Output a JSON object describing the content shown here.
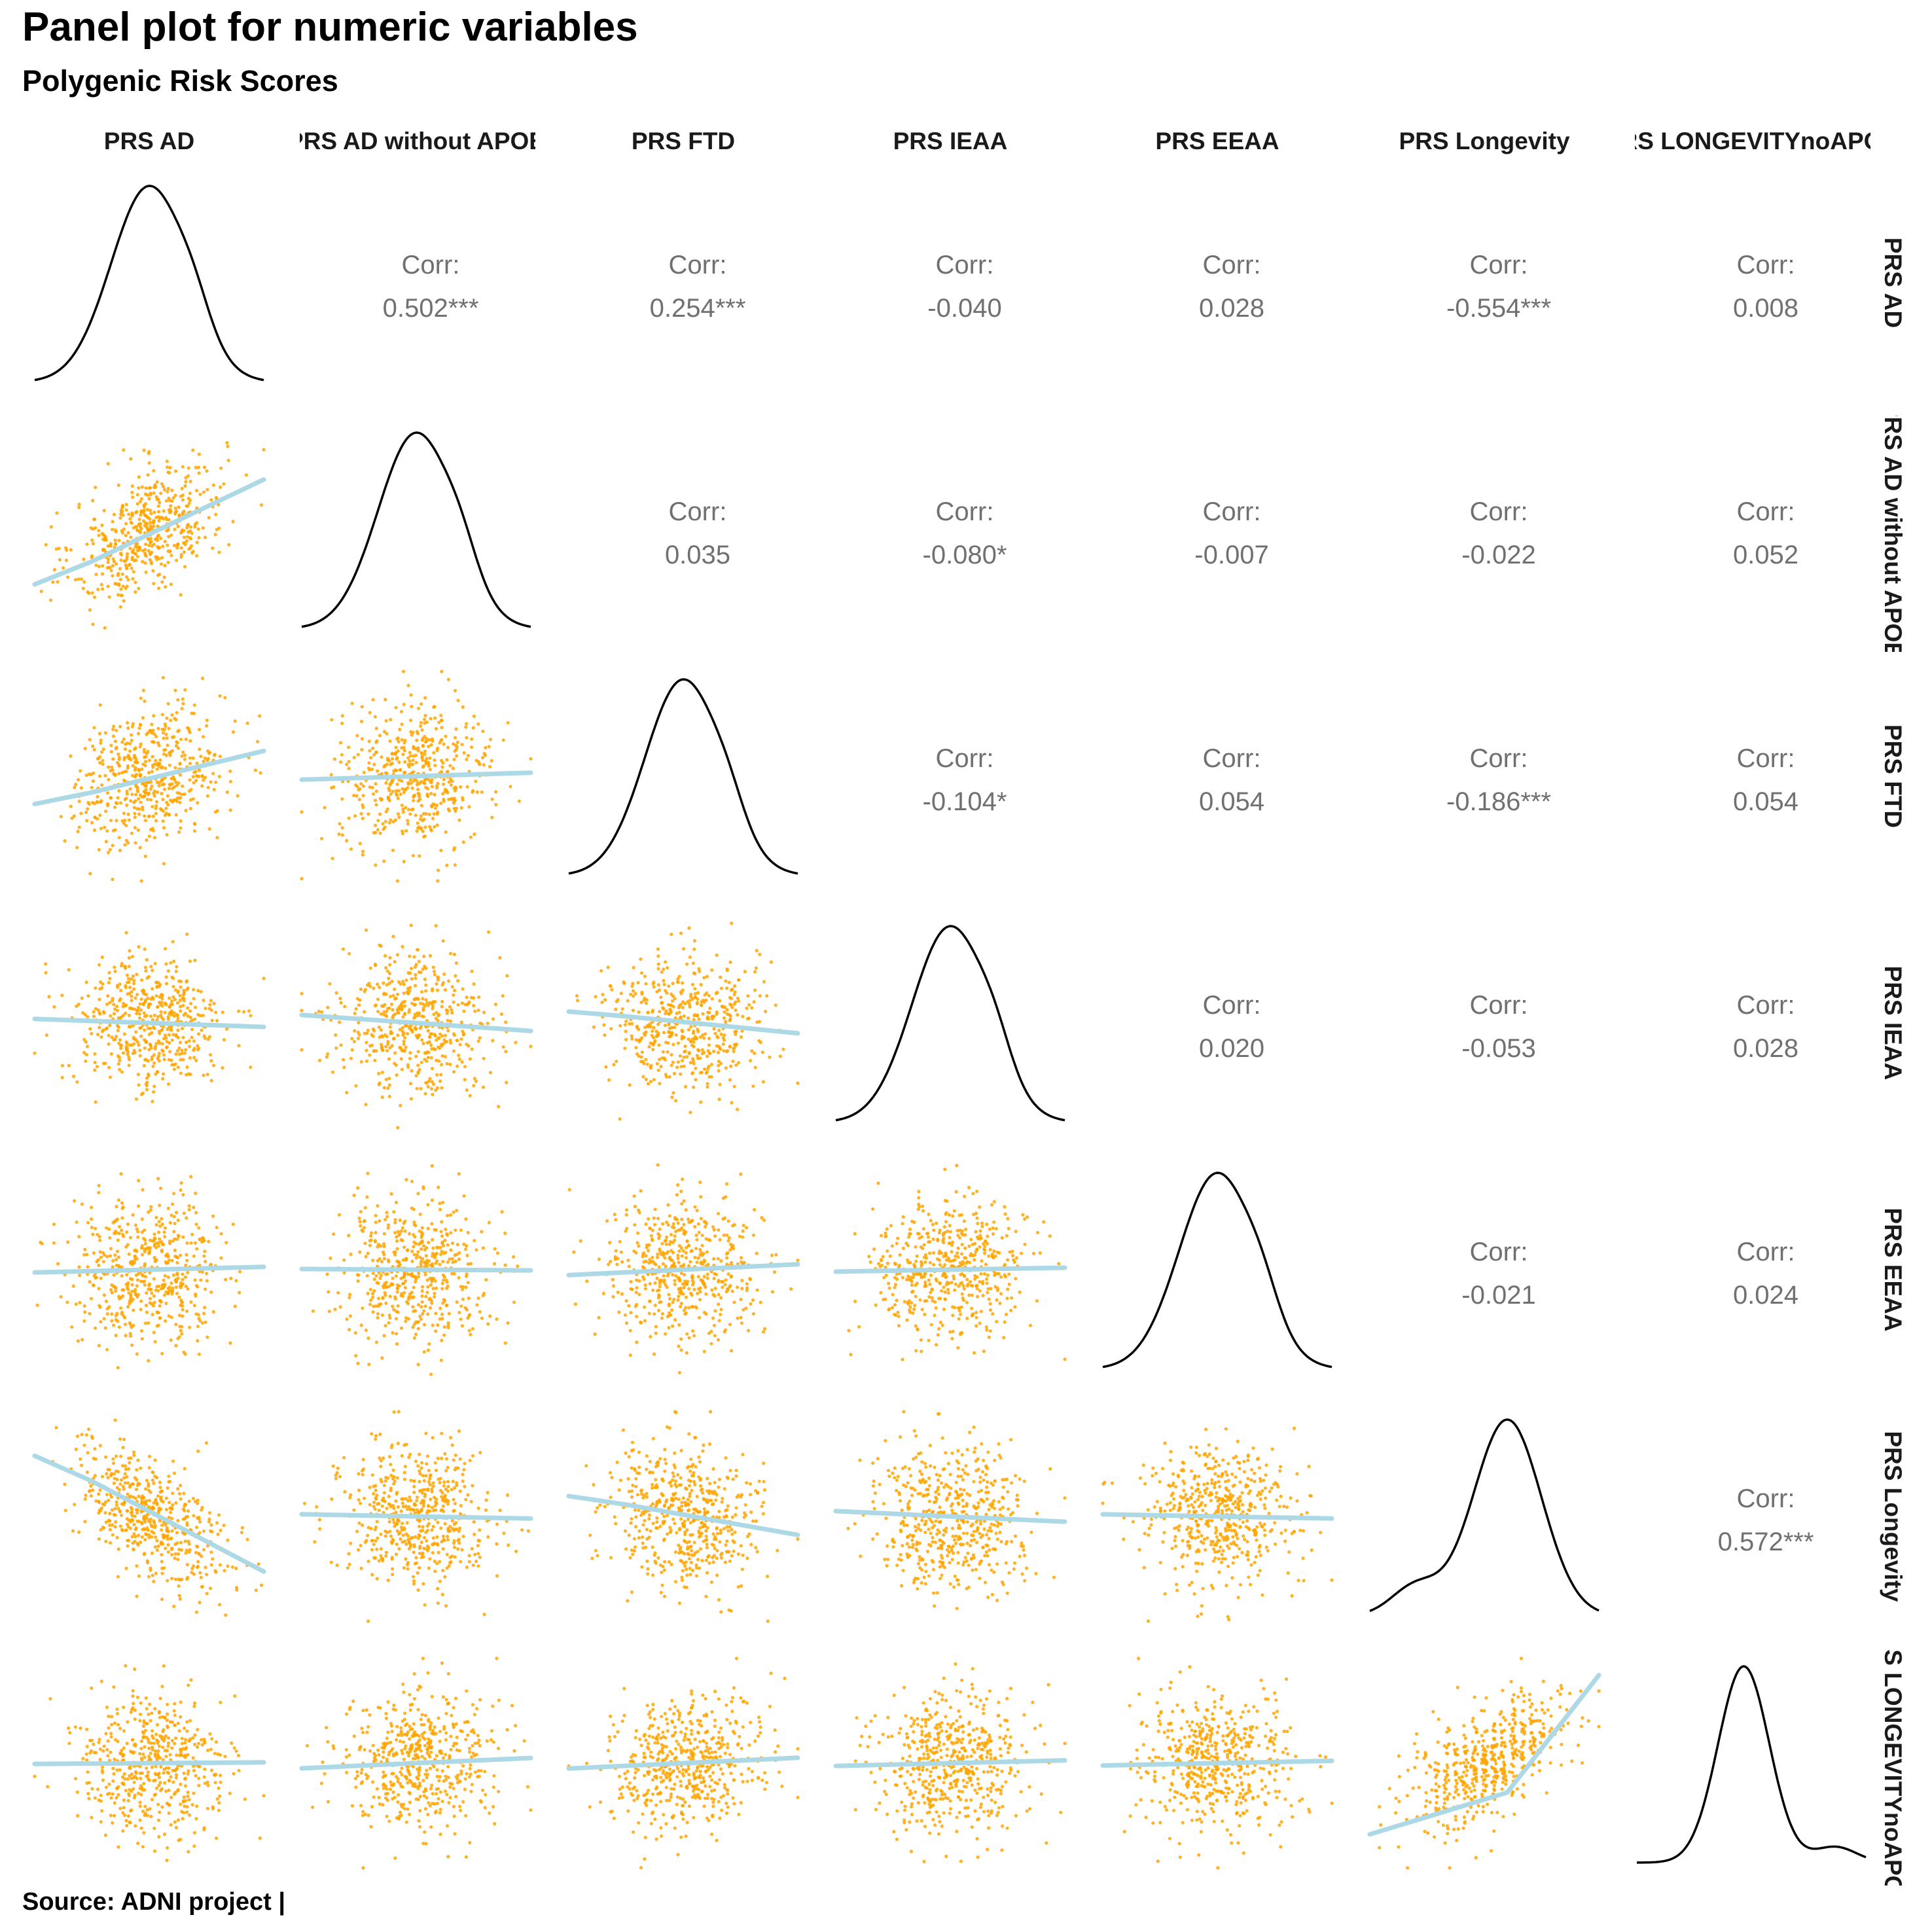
{
  "title": "Panel plot for numeric variables",
  "subtitle": "Polygenic Risk Scores",
  "caption": "Source: ADNI project |",
  "corr_label": "Corr:",
  "colors": {
    "points": "#FFA500",
    "smooth": "#ADD8E6",
    "density": "#000000",
    "corr_text": "#707070"
  },
  "chart_data": {
    "type": "scatter",
    "variables": [
      "PRS AD",
      "PRS AD without APOE",
      "PRS FTD",
      "PRS IEAA",
      "PRS EEAA",
      "PRS Longevity",
      "PRS LONGEVITYnoAPOE"
    ],
    "column_strip_labels": [
      "PRS AD",
      "PRS AD without APOE",
      "PRS FTD",
      "PRS IEAA",
      "PRS EEAA",
      "PRS Longevity",
      "PRS LONGEVITYnoAPOE"
    ],
    "row_strip_labels": [
      "PRS AD",
      "PRS AD without APOE",
      "PRS FTD",
      "PRS IEAA",
      "PRS EEAA",
      "PRS Longevity",
      "PRS LONGEVITYnoAPOE"
    ],
    "correlations": [
      {
        "row": "PRS AD",
        "col": "PRS AD without APOE",
        "value": "0.502***"
      },
      {
        "row": "PRS AD",
        "col": "PRS FTD",
        "value": "0.254***"
      },
      {
        "row": "PRS AD",
        "col": "PRS IEAA",
        "value": "-0.040"
      },
      {
        "row": "PRS AD",
        "col": "PRS EEAA",
        "value": "0.028"
      },
      {
        "row": "PRS AD",
        "col": "PRS Longevity",
        "value": "-0.554***"
      },
      {
        "row": "PRS AD",
        "col": "PRS LONGEVITYnoAPOE",
        "value": "0.008"
      },
      {
        "row": "PRS AD without APOE",
        "col": "PRS FTD",
        "value": "0.035"
      },
      {
        "row": "PRS AD without APOE",
        "col": "PRS IEAA",
        "value": "-0.080*"
      },
      {
        "row": "PRS AD without APOE",
        "col": "PRS EEAA",
        "value": "-0.007"
      },
      {
        "row": "PRS AD without APOE",
        "col": "PRS Longevity",
        "value": "-0.022"
      },
      {
        "row": "PRS AD without APOE",
        "col": "PRS LONGEVITYnoAPOE",
        "value": "0.052"
      },
      {
        "row": "PRS FTD",
        "col": "PRS IEAA",
        "value": "-0.104*"
      },
      {
        "row": "PRS FTD",
        "col": "PRS EEAA",
        "value": "0.054"
      },
      {
        "row": "PRS FTD",
        "col": "PRS Longevity",
        "value": "-0.186***"
      },
      {
        "row": "PRS FTD",
        "col": "PRS LONGEVITYnoAPOE",
        "value": "0.054"
      },
      {
        "row": "PRS IEAA",
        "col": "PRS EEAA",
        "value": "0.020"
      },
      {
        "row": "PRS IEAA",
        "col": "PRS Longevity",
        "value": "-0.053"
      },
      {
        "row": "PRS IEAA",
        "col": "PRS LONGEVITYnoAPOE",
        "value": "0.028"
      },
      {
        "row": "PRS EEAA",
        "col": "PRS Longevity",
        "value": "-0.021"
      },
      {
        "row": "PRS EEAA",
        "col": "PRS LONGEVITYnoAPOE",
        "value": "0.024"
      },
      {
        "row": "PRS Longevity",
        "col": "PRS LONGEVITYnoAPOE",
        "value": "0.572***"
      }
    ],
    "matrix": {
      "upper": "correlation text",
      "diagonal": "density curve",
      "lower": "scatter points with smooth line"
    }
  }
}
